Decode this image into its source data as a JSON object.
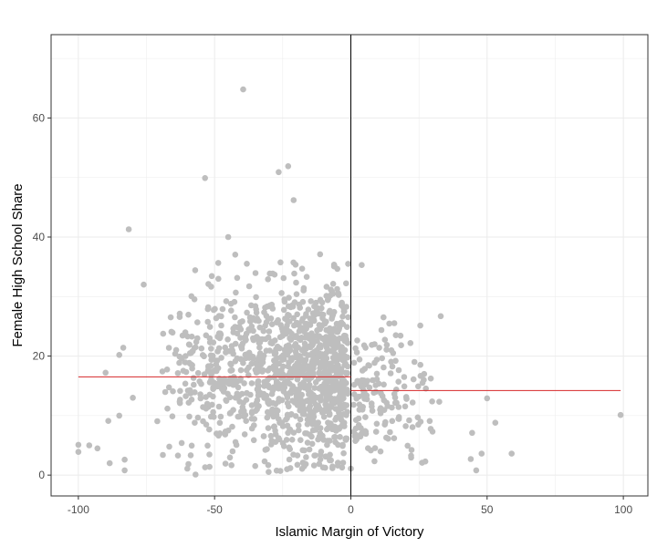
{
  "chart_data": {
    "type": "scatter",
    "title": "",
    "xlabel": "Islamic Margin of Victory",
    "ylabel": "Female High School Share",
    "xlim": [
      -110,
      109
    ],
    "ylim": [
      -3.5,
      74
    ],
    "x_ticks": [
      -100,
      -50,
      0,
      50,
      100
    ],
    "x_tick_labels": [
      "-100",
      "-50",
      "0",
      "50",
      "100"
    ],
    "y_ticks": [
      0,
      20,
      40,
      60
    ],
    "y_tick_labels": [
      "0",
      "20",
      "40",
      "60"
    ],
    "x_minor_ticks": [
      -75,
      -25,
      25,
      75
    ],
    "y_minor_ticks": [
      10,
      30,
      50,
      70
    ],
    "grid": true,
    "legend": "none",
    "colors": {
      "points": "#bebebe",
      "fit_line": "#d62728",
      "cutoff_line": "#000000",
      "grid": "#ebebeb",
      "panel_border": "#333333"
    },
    "cutoff": {
      "x": 0
    },
    "fitted_segments": [
      {
        "x": [
          -100,
          0
        ],
        "y": [
          16.5,
          16.5
        ]
      },
      {
        "x": [
          0,
          99
        ],
        "y": [
          14.2,
          14.2
        ]
      }
    ],
    "highlighted_points": [
      {
        "x": -39.5,
        "y": 64.8
      },
      {
        "x": -53.5,
        "y": 49.9
      },
      {
        "x": -26.5,
        "y": 50.9
      },
      {
        "x": -23,
        "y": 51.9
      },
      {
        "x": -21,
        "y": 46.2
      },
      {
        "x": -81.5,
        "y": 41.3
      },
      {
        "x": -45,
        "y": 40
      },
      {
        "x": -76,
        "y": 32
      },
      {
        "x": 33,
        "y": 26.7
      },
      {
        "x": 4,
        "y": 35.3
      },
      {
        "x": 12,
        "y": 26.5
      },
      {
        "x": 99,
        "y": 10.1
      },
      {
        "x": 59,
        "y": 3.6
      },
      {
        "x": 53,
        "y": 8.8
      },
      {
        "x": 48,
        "y": 3.6
      },
      {
        "x": 46,
        "y": 0.8
      },
      {
        "x": 44.5,
        "y": 7.1
      },
      {
        "x": 50,
        "y": 12.9
      },
      {
        "x": 44,
        "y": 2.7
      },
      {
        "x": -100,
        "y": 5.1
      },
      {
        "x": -100,
        "y": 3.9
      },
      {
        "x": -93,
        "y": 4.5
      },
      {
        "x": -96,
        "y": 5
      },
      {
        "x": -89,
        "y": 9.1
      },
      {
        "x": -90,
        "y": 17.2
      },
      {
        "x": -85,
        "y": 20.2
      },
      {
        "x": -83.5,
        "y": 21.4
      },
      {
        "x": -80,
        "y": 13
      },
      {
        "x": -83,
        "y": 2.6
      },
      {
        "x": -83,
        "y": 0.8
      },
      {
        "x": -88.5,
        "y": 2
      },
      {
        "x": -85,
        "y": 10
      },
      {
        "x": -57,
        "y": 0.1
      },
      {
        "x": -60,
        "y": 1.1
      },
      {
        "x": 0,
        "y": 1.1
      },
      {
        "x": -1,
        "y": 35.5
      }
    ],
    "cloud_clusters": [
      {
        "side": "left",
        "x_range": [
          -72,
          -1
        ],
        "y_mean": 17,
        "y_sd": 7.5,
        "y_range": [
          0.5,
          37.5
        ],
        "count": 1150
      },
      {
        "side": "right",
        "x_range": [
          1,
          35
        ],
        "y_mean": 13,
        "y_sd": 5.5,
        "y_range": [
          1.5,
          26
        ],
        "count": 160
      }
    ],
    "series": [
      {
        "values": "see highlighted_points and cloud_clusters"
      }
    ]
  }
}
